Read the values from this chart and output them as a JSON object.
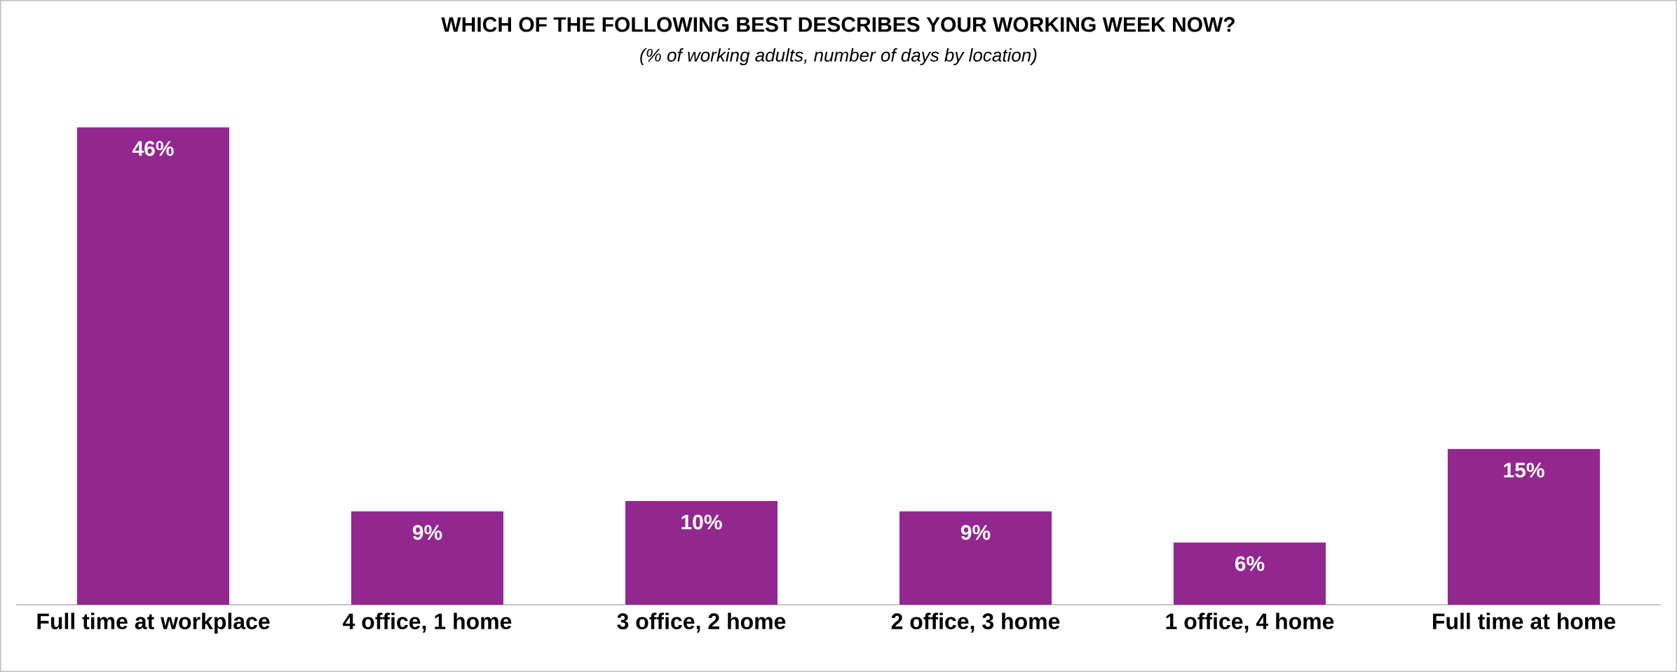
{
  "chart_data": {
    "type": "bar",
    "title": "WHICH OF THE FOLLOWING BEST DESCRIBES YOUR WORKING WEEK NOW?",
    "subtitle": "(% of working adults, number of days by location)",
    "categories": [
      "Full time at workplace",
      "4 office, 1 home",
      "3 office, 2 home",
      "2 office, 3 home",
      "1 office, 4 home",
      "Full time at home"
    ],
    "values": [
      46,
      9,
      10,
      9,
      6,
      15
    ],
    "value_labels": [
      "46%",
      "9%",
      "10%",
      "9%",
      "6%",
      "15%"
    ],
    "color": "#92278f"
  }
}
